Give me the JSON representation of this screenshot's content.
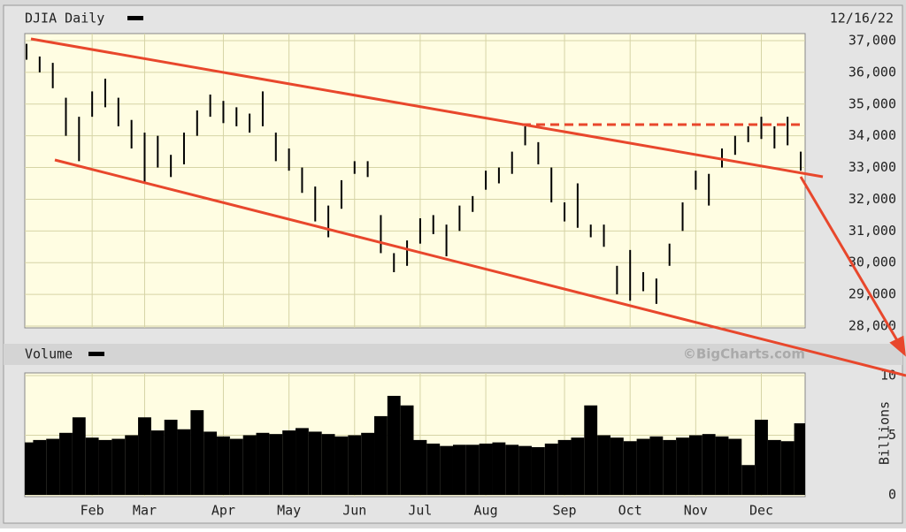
{
  "title": "DJIA Daily",
  "date": "12/16/22",
  "watermark": "©BigCharts.com",
  "chart_data": [
    {
      "type": "ohlc",
      "color": "#000000",
      "high": [
        36900,
        36500,
        36300,
        35200,
        34600,
        35400,
        35800,
        35200,
        34500,
        34100,
        34000,
        33400,
        34100,
        34800,
        35300,
        35100,
        34900,
        34700,
        35400,
        34100,
        33600,
        33000,
        32400,
        31800,
        32600,
        33200,
        33200,
        31500,
        30300,
        30700,
        31400,
        31500,
        31200,
        31800,
        32100,
        32900,
        33000,
        33500,
        34300,
        33800,
        33000,
        31900,
        32500,
        31200,
        31200,
        29900,
        30400,
        29700,
        29500,
        30600,
        31900,
        32900,
        32800,
        33600,
        34000,
        34300,
        34600,
        34300,
        34600,
        33500
      ],
      "low": [
        36400,
        36000,
        35500,
        34000,
        33200,
        34600,
        34900,
        34300,
        33600,
        32500,
        33000,
        32700,
        33100,
        34000,
        34600,
        34400,
        34300,
        34100,
        34300,
        33200,
        32900,
        32200,
        31300,
        30800,
        31700,
        32800,
        32700,
        30300,
        29700,
        29900,
        30600,
        30900,
        30200,
        31000,
        31600,
        32300,
        32500,
        32800,
        33700,
        33100,
        31900,
        31300,
        31100,
        30800,
        30500,
        29000,
        28800,
        29100,
        28700,
        29900,
        31000,
        32300,
        31800,
        33000,
        33400,
        33800,
        33900,
        33600,
        33700,
        32900
      ],
      "ylim": [
        28000,
        37000
      ],
      "yticks": [
        {
          "value": 28000,
          "label": "28,000"
        },
        {
          "value": 29000,
          "label": "29,000"
        },
        {
          "value": 30000,
          "label": "30,000"
        },
        {
          "value": 31000,
          "label": "31,000"
        },
        {
          "value": 32000,
          "label": "32,000"
        },
        {
          "value": 33000,
          "label": "33,000"
        },
        {
          "value": 34000,
          "label": "34,000"
        },
        {
          "value": 35000,
          "label": "35,000"
        },
        {
          "value": 36000,
          "label": "36,000"
        },
        {
          "value": 37000,
          "label": "37,000"
        }
      ],
      "grid": true
    },
    {
      "type": "bar",
      "title": "Volume",
      "y_label": "Billions",
      "color": "#000000",
      "categories": [
        null,
        null,
        null,
        null,
        null,
        "Feb",
        null,
        null,
        null,
        "Mar",
        null,
        null,
        null,
        null,
        null,
        "Apr",
        null,
        null,
        null,
        null,
        "May",
        null,
        null,
        null,
        null,
        "Jun",
        null,
        null,
        null,
        null,
        "Jul",
        null,
        null,
        null,
        null,
        "Aug",
        null,
        null,
        null,
        null,
        null,
        "Sep",
        null,
        null,
        null,
        null,
        "Oct",
        null,
        null,
        null,
        null,
        "Nov",
        null,
        null,
        null,
        null,
        "Dec",
        null,
        null,
        null
      ],
      "values": [
        4.4,
        4.6,
        4.7,
        5.2,
        6.5,
        4.8,
        4.6,
        4.7,
        5.0,
        6.5,
        5.4,
        6.3,
        5.5,
        7.1,
        5.3,
        4.9,
        4.7,
        5.0,
        5.2,
        5.1,
        5.4,
        5.6,
        5.3,
        5.1,
        4.9,
        5.0,
        5.2,
        6.6,
        8.3,
        7.5,
        4.6,
        4.3,
        4.1,
        4.2,
        4.2,
        4.3,
        4.4,
        4.2,
        4.1,
        4.0,
        4.3,
        4.6,
        4.8,
        7.5,
        5.0,
        4.8,
        4.5,
        4.7,
        4.9,
        4.6,
        4.8,
        5.0,
        5.1,
        4.9,
        4.7,
        2.5,
        6.3,
        4.6,
        4.5,
        6.0
      ],
      "ylim": [
        0,
        10
      ],
      "yticks": [
        0,
        5,
        10
      ],
      "grid": true
    }
  ]
}
